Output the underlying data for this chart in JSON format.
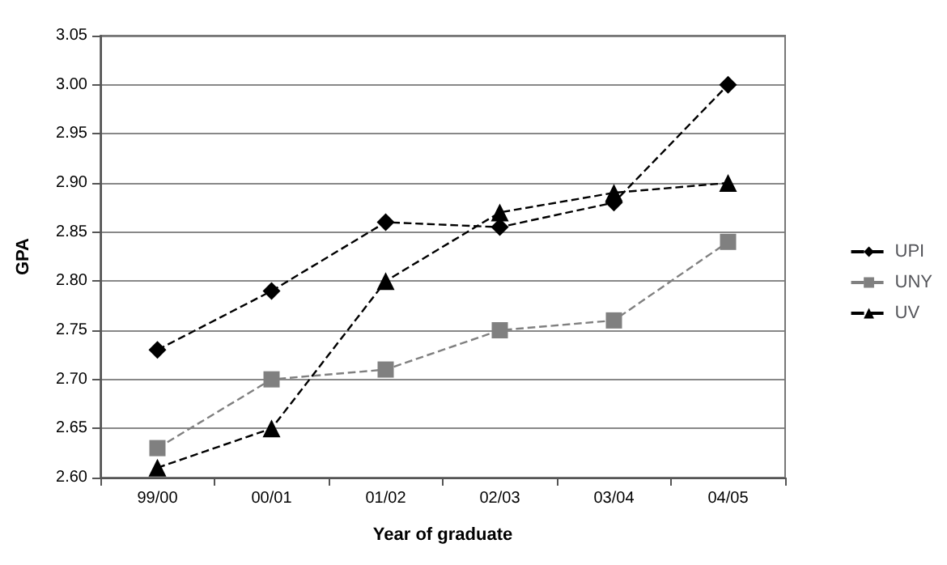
{
  "chart_data": {
    "type": "line",
    "xlabel": "Year of graduate",
    "ylabel": "GPA",
    "categories": [
      "99/00",
      "00/01",
      "01/02",
      "02/03",
      "03/04",
      "04/05"
    ],
    "series": [
      {
        "name": "UPI",
        "color": "#000000",
        "marker": "diamond",
        "values": [
          2.73,
          2.79,
          2.86,
          2.855,
          2.88,
          3.0
        ]
      },
      {
        "name": "UNY",
        "color": "#808080",
        "marker": "square",
        "values": [
          2.63,
          2.7,
          2.71,
          2.75,
          2.76,
          2.84
        ]
      },
      {
        "name": "UV",
        "color": "#000000",
        "marker": "triangle",
        "values": [
          2.61,
          2.65,
          2.8,
          2.87,
          2.89,
          2.9
        ]
      }
    ],
    "ylim": [
      2.6,
      3.05
    ],
    "yticks": [
      {
        "value": 2.6,
        "label": "2.60"
      },
      {
        "value": 2.65,
        "label": "2.65"
      },
      {
        "value": 2.7,
        "label": "2.70"
      },
      {
        "value": 2.75,
        "label": "2.75"
      },
      {
        "value": 2.8,
        "label": "2.80"
      },
      {
        "value": 2.85,
        "label": "2.85"
      },
      {
        "value": 2.9,
        "label": "2.90"
      },
      {
        "value": 2.95,
        "label": "2.95"
      },
      {
        "value": 3.0,
        "label": "3.00"
      },
      {
        "value": 3.05,
        "label": "3.05"
      }
    ],
    "grid": "y",
    "legend": "right",
    "line_style": "dashed"
  }
}
